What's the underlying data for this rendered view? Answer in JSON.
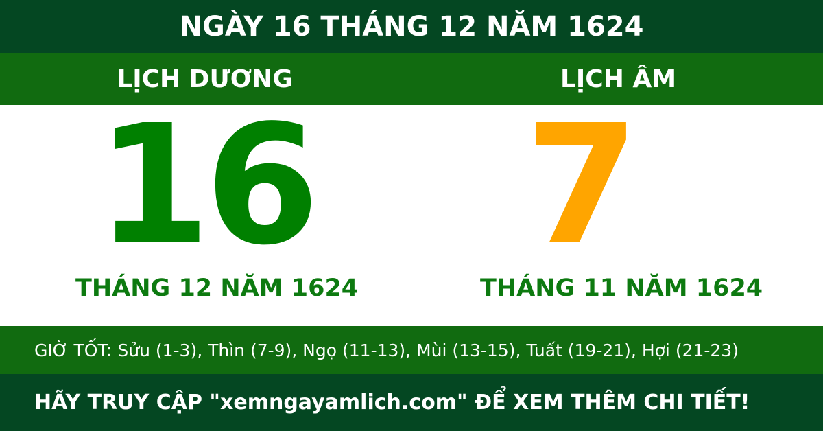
{
  "title": "NGÀY 16 THÁNG 12 NĂM 1624",
  "solar": {
    "label": "LỊCH DƯƠNG",
    "day": "16",
    "month_year": "THÁNG 12 NĂM 1624"
  },
  "lunar": {
    "label": "LỊCH ÂM",
    "day": "7",
    "month_year": "THÁNG 11 NĂM 1624"
  },
  "good_hours": "GIỜ TỐT: Sửu (1-3), Thìn (7-9), Ngọ (11-13), Mùi (13-15), Tuất (19-21), Hợi (21-23)",
  "footer": "HÃY TRUY CẬP \"xemngayamlich.com\" ĐỂ XEM THÊM CHI TIẾT!",
  "colors": {
    "dark_green": "#044722",
    "green": "#116b10",
    "solar_day": "#008000",
    "lunar_day": "#ffa500"
  }
}
